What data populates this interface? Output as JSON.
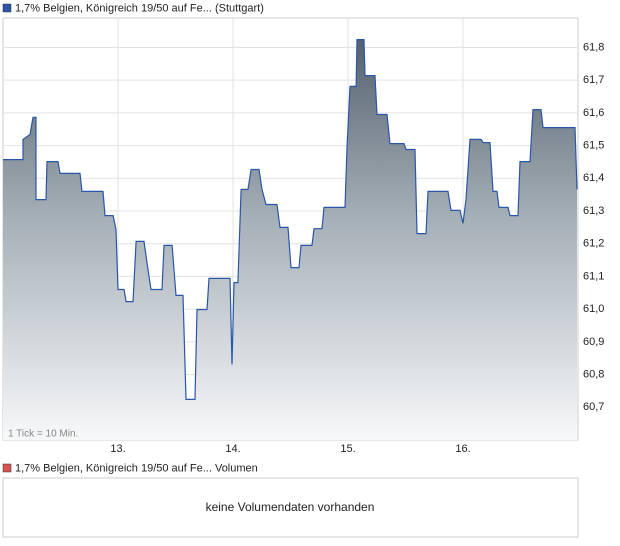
{
  "chart_data": [
    {
      "type": "area",
      "legend": "1,7% Belgien, Königreich 19/50 auf Fe... (Stuttgart)",
      "note": "1 Tick = 10 Min.",
      "color": "#2a56a8",
      "x": [
        12.0,
        12.174,
        12.174,
        12.235,
        12.261,
        12.287,
        12.287,
        12.374,
        12.383,
        12.478,
        12.496,
        12.67,
        12.687,
        12.87,
        12.887,
        12.957,
        12.983,
        13.0,
        13.052,
        13.07,
        13.13,
        13.157,
        13.226,
        13.261,
        13.287,
        13.383,
        13.4,
        13.47,
        13.504,
        13.565,
        13.591,
        13.67,
        13.687,
        13.774,
        13.791,
        13.974,
        13.991,
        14.009,
        14.043,
        14.07,
        14.13,
        14.157,
        14.226,
        14.252,
        14.287,
        14.383,
        14.409,
        14.478,
        14.504,
        14.574,
        14.591,
        14.687,
        14.704,
        14.774,
        14.791,
        14.974,
        14.991,
        15.017,
        15.07,
        15.078,
        15.139,
        15.148,
        15.235,
        15.252,
        15.339,
        15.365,
        15.487,
        15.504,
        15.583,
        15.6,
        15.678,
        15.696,
        15.87,
        15.896,
        15.974,
        16.0,
        16.026,
        16.061,
        16.157,
        16.174,
        16.235,
        16.261,
        16.296,
        16.313,
        16.391,
        16.409,
        16.478,
        16.496,
        16.583,
        16.609,
        16.678,
        16.696,
        16.974,
        16.991
      ],
      "values": [
        61.457,
        61.457,
        61.519,
        61.534,
        61.586,
        61.586,
        61.335,
        61.335,
        61.451,
        61.451,
        61.415,
        61.415,
        61.36,
        61.36,
        61.286,
        61.286,
        61.243,
        61.06,
        61.06,
        61.023,
        61.023,
        61.207,
        61.207,
        61.121,
        61.06,
        61.06,
        61.195,
        61.195,
        61.042,
        61.042,
        60.724,
        60.724,
        60.999,
        60.999,
        61.094,
        61.094,
        60.831,
        61.081,
        61.081,
        61.366,
        61.366,
        61.427,
        61.427,
        61.366,
        61.32,
        61.32,
        61.25,
        61.25,
        61.127,
        61.127,
        61.195,
        61.195,
        61.246,
        61.246,
        61.311,
        61.311,
        61.494,
        61.681,
        61.681,
        61.824,
        61.824,
        61.714,
        61.714,
        61.595,
        61.595,
        61.506,
        61.506,
        61.488,
        61.488,
        61.231,
        61.231,
        61.36,
        61.36,
        61.302,
        61.302,
        61.262,
        61.335,
        61.519,
        61.519,
        61.509,
        61.509,
        61.36,
        61.36,
        61.311,
        61.311,
        61.286,
        61.286,
        61.451,
        61.451,
        61.61,
        61.61,
        61.555,
        61.555,
        61.366
      ],
      "xlim": [
        12,
        17
      ],
      "ylim": [
        60.6,
        61.89
      ],
      "xticks": [
        {
          "value": 13,
          "label": "13."
        },
        {
          "value": 14,
          "label": "14."
        },
        {
          "value": 15,
          "label": "15."
        },
        {
          "value": 16,
          "label": "16."
        }
      ],
      "yticks": [
        {
          "value": 60.7,
          "label": "60,7"
        },
        {
          "value": 60.8,
          "label": "60,8"
        },
        {
          "value": 60.9,
          "label": "60,9"
        },
        {
          "value": 61.0,
          "label": "61,0"
        },
        {
          "value": 61.1,
          "label": "61,1"
        },
        {
          "value": 61.2,
          "label": "61,2"
        },
        {
          "value": 61.3,
          "label": "61,3"
        },
        {
          "value": 61.4,
          "label": "61,4"
        },
        {
          "value": 61.5,
          "label": "61,5"
        },
        {
          "value": 61.6,
          "label": "61,6"
        },
        {
          "value": 61.7,
          "label": "61,7"
        },
        {
          "value": 61.8,
          "label": "61,8"
        }
      ],
      "grid": true
    },
    {
      "type": "bar",
      "legend": "1,7% Belgien, Königreich 19/50 auf Fe... Volumen",
      "color": "#d9534f",
      "message": "keine Volumendaten vorhanden"
    }
  ]
}
